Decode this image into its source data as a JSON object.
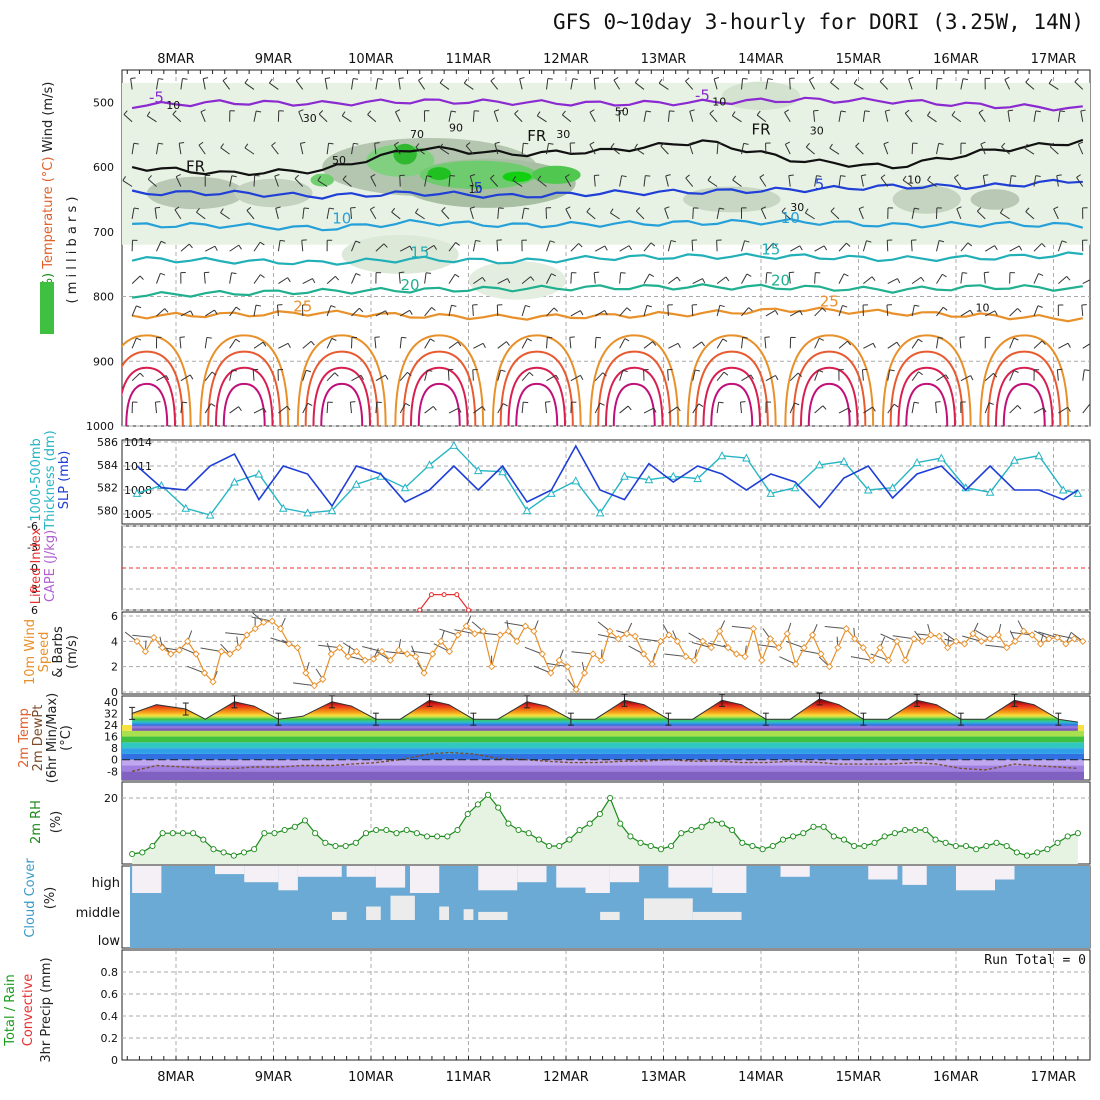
{
  "title": "GFS 0~10day 3-hourly for DORI (3.25W, 14N)",
  "dates": [
    "8MAR",
    "9MAR",
    "10MAR",
    "11MAR",
    "12MAR",
    "13MAR",
    "14MAR",
    "15MAR",
    "16MAR",
    "17MAR"
  ],
  "colors": {
    "blue": "#1f3fd6",
    "cyan": "#26b5c4",
    "green": "#2a9a2a",
    "orange": "#e8902a",
    "red": "#e83030",
    "purple": "#8a2ad0",
    "cloud": "#6aaad4"
  },
  "chart_data": [
    {
      "panel": "upper-air",
      "type": "contour",
      "ylabel_parts": [
        {
          "text": "RH (%)",
          "color": "#1a8a1a"
        },
        {
          "text": "Temperature (°C)",
          "color": "#e0602a"
        },
        {
          "text": "Wind (m/s)",
          "color": "#222"
        }
      ],
      "ylabel2": "( m i l l i b a r s )",
      "ylim": [
        1000,
        450
      ],
      "yticks": [
        500,
        600,
        700,
        800,
        900,
        1000
      ],
      "contour_labels": [
        {
          "text": "-5",
          "x": "7.8MAR",
          "p": 500,
          "color": "#8a2ad0"
        },
        {
          "text": "-5",
          "x": "13.4MAR",
          "p": 497,
          "color": "#8a2ad0"
        },
        {
          "text": "FR",
          "x": "8.2MAR",
          "p": 607,
          "color": "#111"
        },
        {
          "text": "FR",
          "x": "11.7MAR",
          "p": 560,
          "color": "#111"
        },
        {
          "text": "FR",
          "x": "14.0MAR",
          "p": 550,
          "color": "#111"
        },
        {
          "text": "5",
          "x": "11.1MAR",
          "p": 640,
          "color": "#1f3fd6"
        },
        {
          "text": "5",
          "x": "14.6MAR",
          "p": 635,
          "color": "#1f3fd6"
        },
        {
          "text": "10",
          "x": "9.7MAR",
          "p": 687,
          "color": "#26a0d8"
        },
        {
          "text": "10",
          "x": "14.3MAR",
          "p": 686,
          "color": "#26a0d8"
        },
        {
          "text": "15",
          "x": "10.5MAR",
          "p": 740,
          "color": "#22b0b8"
        },
        {
          "text": "15",
          "x": "14.1MAR",
          "p": 735,
          "color": "#22b0b8"
        },
        {
          "text": "20",
          "x": "10.4MAR",
          "p": 790,
          "color": "#20b090"
        },
        {
          "text": "20",
          "x": "14.2MAR",
          "p": 783,
          "color": "#20b090"
        },
        {
          "text": "25",
          "x": "9.3MAR",
          "p": 823,
          "color": "#e8902a"
        },
        {
          "text": "25",
          "x": "14.7MAR",
          "p": 815,
          "color": "#e8902a"
        }
      ],
      "rh_labels": [
        "10",
        "30",
        "50",
        "70",
        "90",
        "10",
        "30",
        "50",
        "10",
        "30",
        "10",
        "10",
        "30"
      ],
      "isotherms": [
        {
          "temp": -5,
          "color": "#8a2ad0",
          "p": [
            505,
            500,
            502,
            498,
            500,
            502,
            500,
            496,
            498,
            505,
            510
          ]
        },
        {
          "temp": 0,
          "color": "#111",
          "p": [
            600,
            610,
            605,
            570,
            580,
            575,
            560,
            590,
            600,
            575,
            560
          ]
        },
        {
          "temp": 5,
          "color": "#1f3fd6",
          "p": [
            640,
            640,
            645,
            640,
            645,
            640,
            638,
            635,
            630,
            630,
            620
          ]
        },
        {
          "temp": 10,
          "color": "#26a0d8",
          "p": [
            690,
            690,
            695,
            685,
            690,
            688,
            686,
            684,
            690,
            688,
            690
          ]
        },
        {
          "temp": 15,
          "color": "#22b0b8",
          "p": [
            742,
            745,
            748,
            742,
            746,
            740,
            738,
            738,
            742,
            740,
            735
          ]
        },
        {
          "temp": 20,
          "color": "#20b090",
          "p": [
            798,
            795,
            792,
            790,
            788,
            786,
            785,
            786,
            790,
            785,
            788
          ]
        },
        {
          "temp": 25,
          "color": "#e8902a",
          "p": [
            830,
            828,
            825,
            830,
            832,
            830,
            826,
            820,
            825,
            830,
            835
          ]
        }
      ]
    },
    {
      "panel": "thickness-slp",
      "type": "line",
      "ylabel_parts": [
        {
          "text": "1000-500mb",
          "color": "#26b5c4"
        },
        {
          "text": "Thickness (dm)",
          "color": "#26b5c4"
        },
        {
          "text": "SLP (mb)",
          "color": "#1f3fd6"
        }
      ],
      "left_ticks": [
        "580",
        "582",
        "584",
        "586"
      ],
      "right_ticks": [
        "1005",
        "1008",
        "1011",
        "1014"
      ],
      "x": [
        7.6,
        7.85,
        8.1,
        8.35,
        8.6,
        8.85,
        9.1,
        9.35,
        9.6,
        9.85,
        10.1,
        10.35,
        10.6,
        10.85,
        11.1,
        11.35,
        11.6,
        11.85,
        12.1,
        12.35,
        12.6,
        12.85,
        13.1,
        13.35,
        13.6,
        13.85,
        14.1,
        14.35,
        14.6,
        14.85,
        15.1,
        15.35,
        15.6,
        15.85,
        16.1,
        16.35,
        16.6,
        16.85,
        17.1,
        17.25
      ],
      "series": [
        {
          "name": "thickness",
          "unit": "dm",
          "color": "#26b5c4",
          "values": [
            581.5,
            582.2,
            580.2,
            579.6,
            582.5,
            583.2,
            580.2,
            579.8,
            580.0,
            582.3,
            583.0,
            582.0,
            584.0,
            585.7,
            583.5,
            583.4,
            580.0,
            581.5,
            582.6,
            579.8,
            583.0,
            582.7,
            583.0,
            582.8,
            584.8,
            584.6,
            581.5,
            582.0,
            584.0,
            584.3,
            581.8,
            582.0,
            584.2,
            584.6,
            582.0,
            581.6,
            584.4,
            584.8,
            581.8,
            581.5
          ]
        },
        {
          "name": "SLP",
          "unit": "mb",
          "color": "#1f3fd6",
          "values": [
            1011.0,
            1008.3,
            1008.0,
            1011.0,
            1012.5,
            1006.8,
            1011.0,
            1010.0,
            1006.0,
            1011.0,
            1010.0,
            1006.5,
            1008.0,
            1011.0,
            1008.0,
            1011.0,
            1006.5,
            1008.0,
            1013.5,
            1008.0,
            1006.8,
            1011.3,
            1009.0,
            1011.0,
            1010.0,
            1008.0,
            1010.0,
            1009.0,
            1005.8,
            1009.5,
            1011.0,
            1007.0,
            1010.0,
            1011.0,
            1008.0,
            1011.0,
            1008.0,
            1008.0,
            1006.8,
            1008.0
          ]
        }
      ]
    },
    {
      "panel": "cape-lifted-index",
      "type": "line",
      "ylabel_parts": [
        {
          "text": "Lifted Index",
          "color": "#e83030"
        },
        {
          "text": "CAPE (J/kg)",
          "color": "#b060d0"
        }
      ],
      "yticks": [
        "6",
        "3",
        "0",
        "-3",
        "-6"
      ],
      "series": [
        {
          "name": "Lifted Index",
          "color": "#e83030",
          "points": [
            [
              10.5,
              6
            ],
            [
              10.62,
              3.8
            ],
            [
              10.75,
              3.8
            ],
            [
              10.88,
              3.8
            ],
            [
              11.0,
              6
            ]
          ]
        }
      ]
    },
    {
      "panel": "10m-wind",
      "type": "line",
      "ylabel_parts": [
        {
          "text": "10m Wind",
          "color": "#e8902a"
        },
        {
          "text": "Speed",
          "color": "#e8902a"
        },
        {
          "text": "& Barbs",
          "color": "#222"
        },
        {
          "text": "(m/s)",
          "color": "#222"
        }
      ],
      "yticks": [
        "0",
        "2",
        "4",
        "6"
      ],
      "ylim": [
        0,
        6
      ],
      "series": [
        {
          "name": "wind speed",
          "unit": "m/s",
          "color": "#e8902a",
          "values": [
            4.0,
            3.2,
            4.3,
            3.5,
            3.0,
            3.3,
            4.0,
            3.0,
            1.5,
            0.8,
            3.2,
            3.0,
            3.5,
            4.5,
            5.0,
            5.5,
            5.6,
            5.0,
            3.8,
            3.5,
            1.5,
            0.5,
            1.0,
            3.0,
            3.5,
            2.8,
            3.2,
            2.5,
            2.6,
            3.2,
            2.5,
            3.3,
            3.0,
            2.8,
            1.5,
            3.0,
            4.0,
            3.2,
            4.5,
            5.2,
            4.6,
            4.8,
            2.0,
            4.5,
            4.8,
            4.0,
            5.2,
            4.8,
            3.0,
            1.5,
            2.5,
            2.0,
            0.2,
            1.5,
            3.0,
            2.5,
            4.8,
            4.2,
            4.6,
            4.4,
            3.0,
            2.2,
            4.0,
            4.5,
            4.0,
            2.8,
            2.5,
            4.0,
            3.5,
            4.8,
            3.5,
            3.0,
            2.8,
            5.0,
            2.5,
            4.2,
            3.5,
            4.6,
            2.2,
            3.5,
            4.5,
            3.0,
            2.0,
            3.5,
            5.0,
            4.2,
            3.5,
            2.5,
            3.5,
            2.5,
            4.0,
            2.5,
            4.2,
            4.0,
            4.5,
            4.4,
            3.5,
            4.0,
            3.8,
            4.6,
            4.0,
            4.2,
            4.5,
            3.5,
            4.0,
            4.8,
            4.5,
            3.8,
            4.2,
            4.3,
            3.8,
            4.2,
            4.0
          ]
        }
      ]
    },
    {
      "panel": "2m-temp",
      "type": "area",
      "ylabel_parts": [
        {
          "text": "2m Temp",
          "color": "#e06030"
        },
        {
          "text": "2m DewPt",
          "color": "#7a4a2a"
        },
        {
          "text": "(6hr Min/Max)",
          "color": "#222"
        },
        {
          "text": "(°C)",
          "color": "#222"
        }
      ],
      "yticks": [
        "40",
        "32",
        "24",
        "16",
        "8",
        "0",
        "-8"
      ],
      "ylim": [
        -14,
        44
      ],
      "x": [
        7.55,
        7.8,
        8.1,
        8.3,
        8.6,
        8.8,
        9.05,
        9.3,
        9.6,
        9.8,
        10.05,
        10.3,
        10.6,
        10.8,
        11.05,
        11.3,
        11.6,
        11.8,
        12.05,
        12.3,
        12.6,
        12.8,
        13.05,
        13.3,
        13.6,
        13.8,
        14.05,
        14.3,
        14.6,
        14.8,
        15.05,
        15.3,
        15.6,
        15.8,
        16.05,
        16.3,
        16.6,
        16.8,
        17.05,
        17.25
      ],
      "series": [
        {
          "name": "temperature",
          "unit": "°C",
          "values": [
            32,
            38,
            35,
            28,
            40,
            37,
            28,
            30,
            40,
            37,
            28,
            28,
            41,
            38,
            28,
            28,
            40,
            37,
            28,
            28,
            41,
            38,
            28,
            28,
            41,
            38,
            28,
            28,
            42,
            38,
            28,
            28,
            41,
            38,
            28,
            28,
            41,
            38,
            28,
            26
          ]
        },
        {
          "name": "dew point",
          "unit": "°C",
          "color": "#7a5030",
          "values": [
            -8,
            -4,
            -5,
            -6,
            -6,
            -5,
            -5,
            -4,
            -4,
            -3,
            -2,
            0,
            4,
            5,
            4,
            1,
            0,
            -1,
            -2,
            -2,
            -1,
            -1,
            0,
            -1,
            -1,
            -2,
            -2,
            -1,
            -2,
            -3,
            -3,
            -3,
            -2,
            -3,
            -6,
            -7,
            -3,
            -4,
            -5,
            -6
          ]
        }
      ]
    },
    {
      "panel": "2m-rh",
      "type": "area",
      "ylabel_parts": [
        {
          "text": "2m RH",
          "color": "#1a8a1a"
        },
        {
          "text": "(%)",
          "color": "#222"
        }
      ],
      "yticks": [
        "20"
      ],
      "ylim": [
        0,
        25
      ],
      "series": [
        {
          "name": "RH",
          "unit": "%",
          "color": "#1a8a1a",
          "values": [
            2.5,
            3,
            5,
            9,
            9,
            9,
            9,
            7,
            4,
            3,
            2,
            3,
            4,
            9,
            9,
            10,
            11,
            13,
            9,
            6,
            5,
            5,
            6,
            9,
            10,
            10,
            9,
            10,
            9,
            8,
            8,
            8,
            10,
            15,
            18,
            21,
            17,
            12,
            10,
            9,
            7,
            5,
            5,
            7,
            10,
            12,
            15,
            20,
            12,
            8,
            6,
            5,
            4,
            5,
            9,
            10,
            11,
            13,
            12,
            10,
            6,
            5,
            4,
            5,
            7,
            8,
            9,
            11,
            11,
            8,
            7,
            5,
            5,
            6,
            8,
            9,
            10,
            10,
            10,
            7,
            6,
            5,
            5,
            4,
            5,
            6,
            5,
            3,
            2,
            3,
            4,
            6,
            8,
            9
          ]
        }
      ]
    },
    {
      "panel": "cloud-cover",
      "type": "heatmap",
      "ylabel_parts": [
        {
          "text": "Cloud Cover",
          "color": "#3a9ac8"
        },
        {
          "text": "(%)",
          "color": "#222"
        }
      ],
      "row_labels": [
        "high",
        "middle",
        "low"
      ],
      "high_gaps": [
        [
          7.55,
          7.85,
          1.0
        ],
        [
          8.4,
          8.7,
          0.3
        ],
        [
          8.7,
          9.05,
          0.6
        ],
        [
          9.05,
          9.25,
          0.9
        ],
        [
          9.25,
          9.7,
          0.4
        ],
        [
          9.75,
          10.05,
          0.4
        ],
        [
          10.05,
          10.35,
          0.8
        ],
        [
          10.4,
          10.7,
          1.0
        ],
        [
          11.1,
          11.5,
          0.9
        ],
        [
          11.5,
          11.8,
          0.6
        ],
        [
          11.9,
          12.2,
          0.8
        ],
        [
          12.2,
          12.45,
          1.0
        ],
        [
          12.45,
          12.75,
          0.6
        ],
        [
          13.05,
          13.5,
          0.8
        ],
        [
          13.5,
          13.85,
          1.0
        ],
        [
          14.2,
          14.5,
          0.4
        ],
        [
          15.1,
          15.4,
          0.5
        ],
        [
          15.45,
          15.7,
          0.7
        ],
        [
          16.0,
          16.4,
          0.9
        ],
        [
          16.4,
          16.6,
          0.5
        ]
      ],
      "mid_gaps": [
        [
          9.6,
          9.75,
          0.3
        ],
        [
          9.95,
          10.1,
          0.5
        ],
        [
          10.2,
          10.45,
          0.9
        ],
        [
          10.7,
          10.8,
          0.5
        ],
        [
          10.95,
          11.05,
          0.4
        ],
        [
          11.1,
          11.4,
          0.3
        ],
        [
          12.35,
          12.55,
          0.3
        ],
        [
          12.8,
          13.3,
          0.8
        ],
        [
          13.3,
          13.8,
          0.3
        ]
      ]
    },
    {
      "panel": "precip",
      "type": "bar",
      "ylabel_parts": [
        {
          "text": "Total / Rain",
          "color": "#1a9a1a"
        },
        {
          "text": "Convective",
          "color": "#e83030"
        },
        {
          "text": "3hr Precip (mm)",
          "color": "#222"
        }
      ],
      "yticks": [
        "0",
        "0.2",
        "0.4",
        "0.6",
        "0.8"
      ],
      "ylim": [
        0,
        1
      ],
      "run_total": "Run Total = 0",
      "values": []
    }
  ]
}
